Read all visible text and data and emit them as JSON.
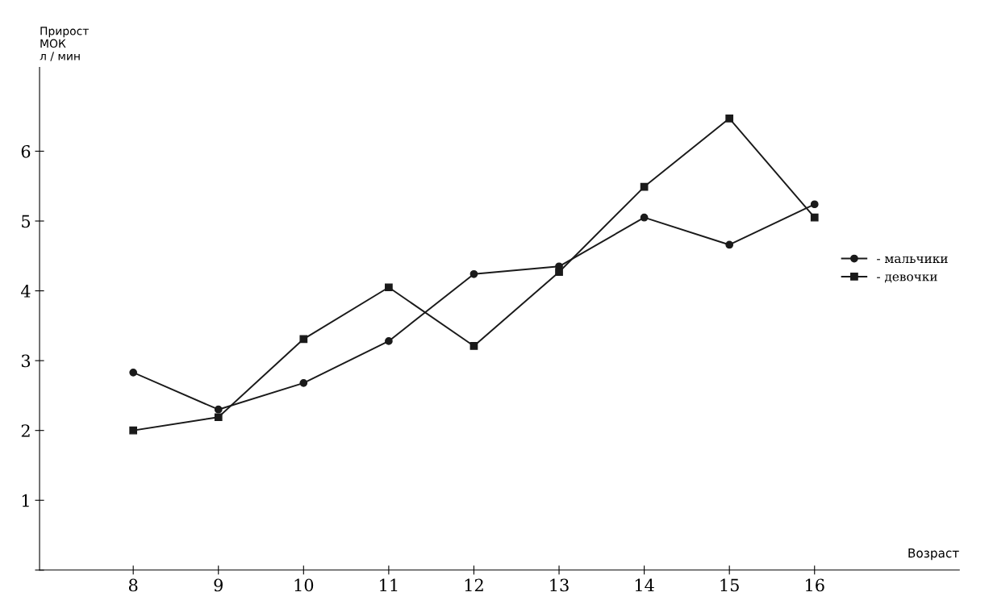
{
  "chart_data": {
    "type": "line",
    "ylabel": "Прирост\nМОК\nл / мин",
    "xlabel": "Возраст",
    "x": [
      8,
      9,
      10,
      11,
      12,
      13,
      14,
      15,
      16
    ],
    "series": [
      {
        "name": "- мальчики",
        "color": "#1a1a1a",
        "marker": "circle",
        "values": [
          2.83,
          2.3,
          2.68,
          3.28,
          4.24,
          4.35,
          5.05,
          4.66,
          5.24
        ]
      },
      {
        "name": "- девочки",
        "color": "#1a1a1a",
        "marker": "square",
        "values": [
          2.0,
          2.19,
          3.31,
          4.05,
          3.21,
          4.27,
          5.49,
          6.47,
          5.05
        ]
      }
    ],
    "xlim": [
      6.9,
      17.7
    ],
    "ylim": [
      0,
      7.2
    ],
    "xticks": [
      8,
      9,
      10,
      11,
      12,
      13,
      14,
      15,
      16
    ],
    "yticks": [
      {
        "value": 0,
        "label": null
      },
      1,
      2,
      3,
      4,
      5,
      6
    ],
    "grid": false,
    "legend": "right",
    "line_style": "solid"
  }
}
